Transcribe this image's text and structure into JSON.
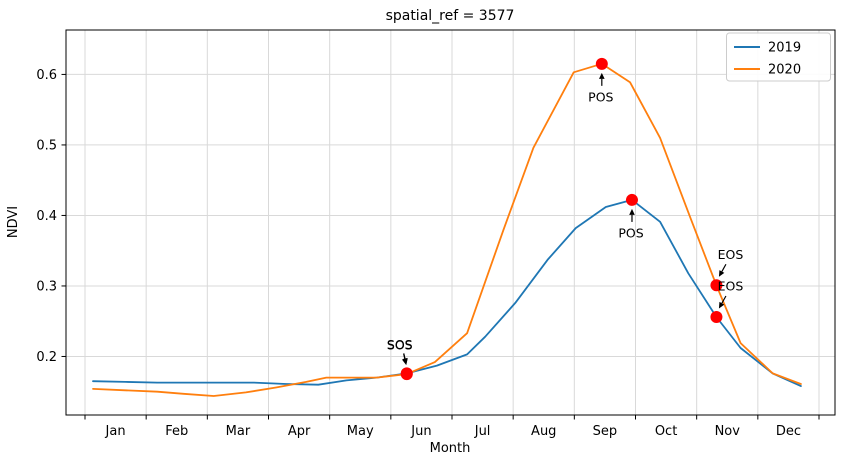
{
  "chart_data": {
    "type": "line",
    "title": "spatial_ref = 3577",
    "xlabel": "Month",
    "ylabel": "NDVI",
    "x_tick_labels": [
      "Jan",
      "Feb",
      "Mar",
      "Apr",
      "May",
      "Jun",
      "Jul",
      "Aug",
      "Sep",
      "Oct",
      "Nov",
      "Dec"
    ],
    "y_ticks": [
      0.2,
      0.3,
      0.4,
      0.5,
      0.6
    ],
    "ylim": [
      0.117,
      0.663
    ],
    "x_day_range": [
      1,
      366
    ],
    "grid": true,
    "legend": {
      "position": "upper right",
      "entries": [
        "2019",
        "2020"
      ]
    },
    "colors": {
      "series_2019": "#1f77b4",
      "series_2020": "#ff7f0e",
      "marker": "#ff0000",
      "grid": "#d9d9d9",
      "frame": "#000000",
      "text": "#000000"
    },
    "series": [
      {
        "name": "2019",
        "color": "#1f77b4",
        "points": [
          [
            5,
            0.165
          ],
          [
            21,
            0.164
          ],
          [
            37,
            0.163
          ],
          [
            53,
            0.163
          ],
          [
            69,
            0.163
          ],
          [
            85,
            0.163
          ],
          [
            101,
            0.161
          ],
          [
            117,
            0.16
          ],
          [
            131,
            0.166
          ],
          [
            146,
            0.17
          ],
          [
            161,
            0.176
          ],
          [
            176,
            0.187
          ],
          [
            191,
            0.203
          ],
          [
            200,
            0.228
          ],
          [
            215,
            0.276
          ],
          [
            231,
            0.337
          ],
          [
            245,
            0.382
          ],
          [
            260,
            0.412
          ],
          [
            273,
            0.422
          ],
          [
            287,
            0.391
          ],
          [
            301,
            0.318
          ],
          [
            315,
            0.256
          ],
          [
            327,
            0.212
          ],
          [
            343,
            0.176
          ],
          [
            357,
            0.158
          ]
        ]
      },
      {
        "name": "2020",
        "color": "#ff7f0e",
        "points": [
          [
            5,
            0.154
          ],
          [
            21,
            0.152
          ],
          [
            37,
            0.15
          ],
          [
            50,
            0.147
          ],
          [
            65,
            0.144
          ],
          [
            81,
            0.149
          ],
          [
            96,
            0.156
          ],
          [
            111,
            0.164
          ],
          [
            121,
            0.17
          ],
          [
            131,
            0.17
          ],
          [
            146,
            0.17
          ],
          [
            161,
            0.175
          ],
          [
            175,
            0.192
          ],
          [
            191,
            0.233
          ],
          [
            209,
            0.379
          ],
          [
            224,
            0.496
          ],
          [
            244,
            0.603
          ],
          [
            258,
            0.615
          ],
          [
            272,
            0.589
          ],
          [
            287,
            0.51
          ],
          [
            302,
            0.397
          ],
          [
            315,
            0.301
          ],
          [
            327,
            0.219
          ],
          [
            343,
            0.176
          ],
          [
            357,
            0.161
          ]
        ]
      }
    ],
    "phenology_markers": [
      {
        "label": "SOS",
        "series": "2019",
        "day": 161,
        "value": 0.176,
        "placement": "above"
      },
      {
        "label": "SOS",
        "series": "2020",
        "day": 161,
        "value": 0.175,
        "placement": "above"
      },
      {
        "label": "POS",
        "series": "2020",
        "day": 258,
        "value": 0.615,
        "placement": "below"
      },
      {
        "label": "POS",
        "series": "2019",
        "day": 273,
        "value": 0.422,
        "placement": "below"
      },
      {
        "label": "EOS",
        "series": "2020",
        "day": 315,
        "value": 0.301,
        "placement": "above-right"
      },
      {
        "label": "EOS",
        "series": "2019",
        "day": 315,
        "value": 0.256,
        "placement": "above-right"
      }
    ]
  }
}
